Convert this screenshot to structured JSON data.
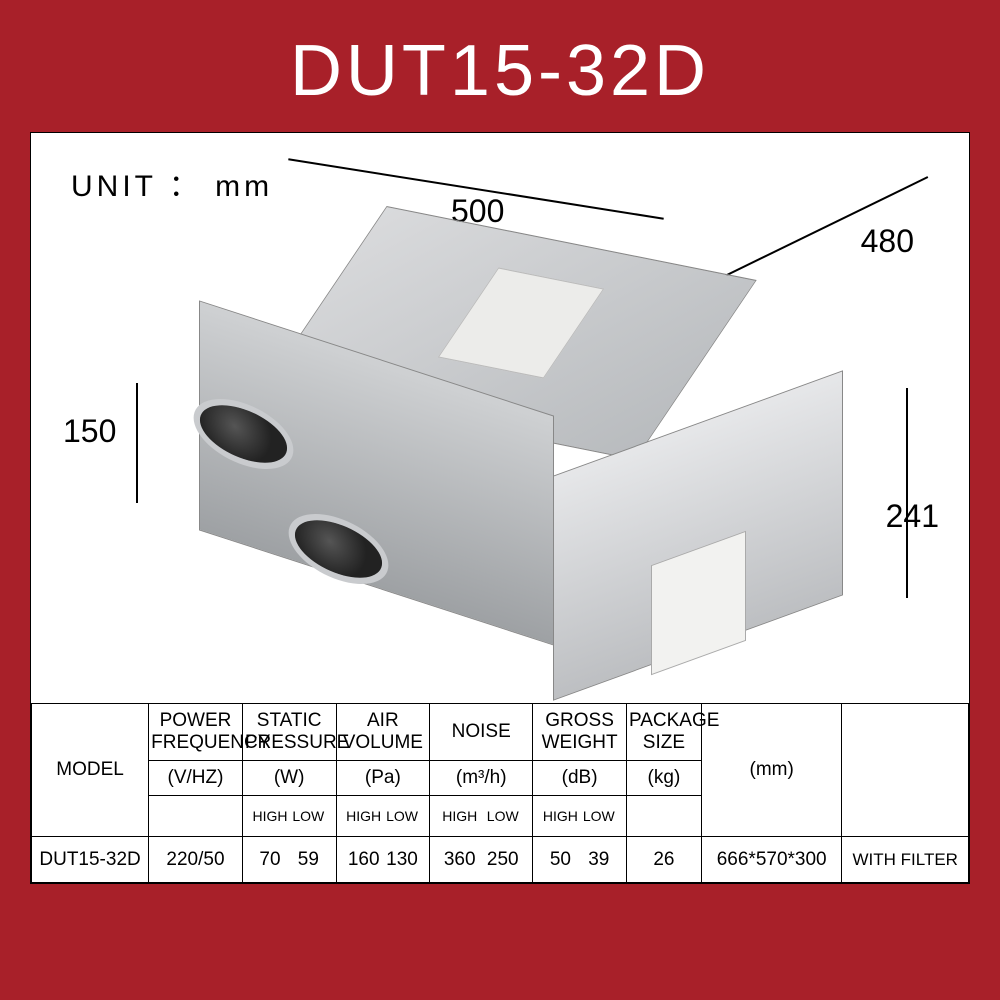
{
  "title": "DUT15-32D",
  "unit_label": "UNIT ： mm",
  "dimensions": {
    "top_width": "500",
    "top_depth": "480",
    "port_dia": "150",
    "height": "241"
  },
  "table": {
    "headers": {
      "model": "MODEL",
      "power_freq": "POWER FREQUENCY",
      "static_pressure": "STATIC PRESSURE",
      "air_volume": "AIR VOLUME",
      "noise": "NOISE",
      "gross_weight": "GROSS WEIGHT",
      "package_size": "PACKAGE SIZE"
    },
    "units": {
      "power_freq": "(V/HZ)",
      "static_pressure": "(W)",
      "air_volume": "(Pa)",
      "noise": "(m³/h)",
      "gross_weight": "(dB)",
      "package_size": "(kg)",
      "mm": "(mm)"
    },
    "hl": {
      "high": "HIGH",
      "low": "LOW"
    },
    "row": {
      "model": "DUT15-32D",
      "power_freq": "220/50",
      "sp_high": "70",
      "sp_low": "59",
      "av_high": "160",
      "av_low": "130",
      "noise_high": "360",
      "noise_low": "250",
      "gw_high": "50",
      "gw_low": "39",
      "pkg": "26",
      "mm": "666*570*300",
      "filter": "WITH FILTER"
    }
  },
  "colors": {
    "brand_bg": "#a82029",
    "card_bg": "#ffffff",
    "text": "#000000",
    "metal_light": "#d9dadc",
    "metal_dark": "#9ea1a4"
  }
}
